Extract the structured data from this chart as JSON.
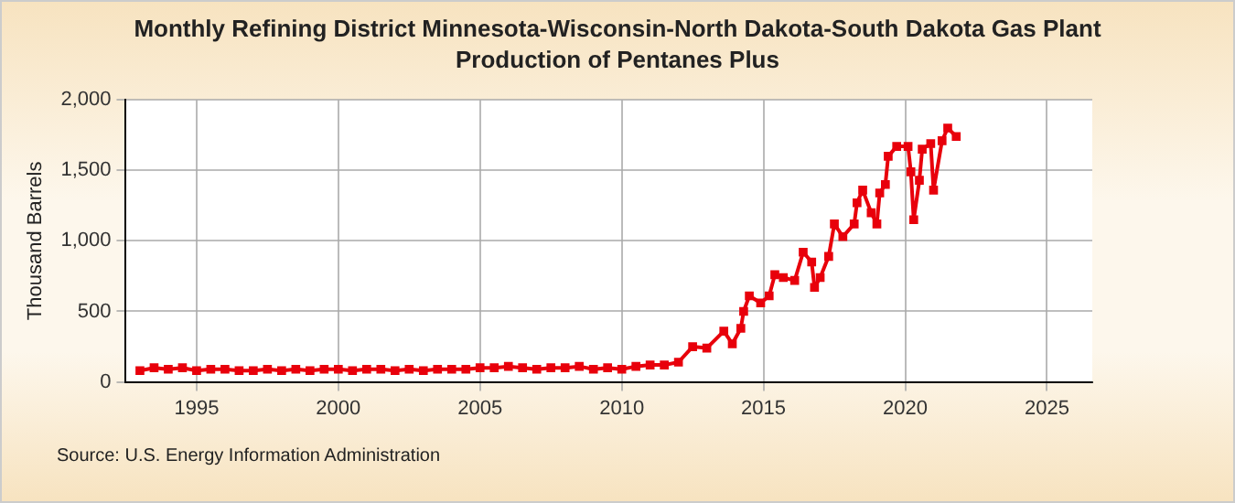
{
  "chart_data": {
    "type": "line",
    "title": "Monthly Refining District Minnesota-Wisconsin-North Dakota-South Dakota Gas Plant Production of Pentanes Plus",
    "ylabel": "Thousand Barrels",
    "annotations": [
      "Source: U.S. Energy Information Administration"
    ],
    "x": [
      1993,
      1993.5,
      1994,
      1994.5,
      1995,
      1995.5,
      1996,
      1996.5,
      1997,
      1997.5,
      1998,
      1998.5,
      1999,
      1999.5,
      2000,
      2000.5,
      2001,
      2001.5,
      2002,
      2002.5,
      2003,
      2003.5,
      2004,
      2004.5,
      2005,
      2005.5,
      2006,
      2006.5,
      2007,
      2007.5,
      2008,
      2008.5,
      2009,
      2009.5,
      2010,
      2010.5,
      2011,
      2011.5,
      2012,
      2012.5,
      2013,
      2013.6,
      2013.9,
      2014.2,
      2014.3,
      2014.5,
      2014.9,
      2015.2,
      2015.4,
      2015.7,
      2016.1,
      2016.4,
      2016.7,
      2016.8,
      2017,
      2017.3,
      2017.5,
      2017.8,
      2018.2,
      2018.3,
      2018.5,
      2018.8,
      2019,
      2019.1,
      2019.3,
      2019.4,
      2019.7,
      2020.1,
      2020.2,
      2020.3,
      2020.5,
      2020.6,
      2020.9,
      2021,
      2021.3,
      2021.5,
      2021.8
    ],
    "series": [
      {
        "color": "#e8000b",
        "values": [
          80,
          100,
          90,
          100,
          80,
          90,
          90,
          80,
          80,
          90,
          80,
          90,
          80,
          90,
          90,
          80,
          90,
          90,
          80,
          90,
          80,
          90,
          90,
          90,
          100,
          100,
          110,
          100,
          90,
          100,
          100,
          110,
          90,
          100,
          90,
          110,
          120,
          120,
          140,
          250,
          240,
          360,
          270,
          380,
          500,
          610,
          560,
          610,
          760,
          740,
          720,
          920,
          850,
          670,
          740,
          890,
          1120,
          1030,
          1120,
          1270,
          1360,
          1200,
          1120,
          1340,
          1400,
          1600,
          1670,
          1670,
          1490,
          1150,
          1430,
          1650,
          1690,
          1360,
          1710,
          1800,
          1740
        ]
      }
    ],
    "xlim": [
      1992.5,
      2026.6
    ],
    "xticks": [
      1995,
      2000,
      2005,
      2010,
      2015,
      2020,
      2025
    ],
    "ylim": [
      0,
      2000
    ],
    "yticks": [
      0,
      {
        "value": 500,
        "label": "500"
      },
      {
        "value": 1000,
        "label": "1,000"
      },
      {
        "value": 1500,
        "label": "1,500"
      },
      {
        "value": 2000,
        "label": "2,000"
      }
    ],
    "grid": true,
    "legend": false,
    "marker": "square",
    "line_style": "solid"
  }
}
